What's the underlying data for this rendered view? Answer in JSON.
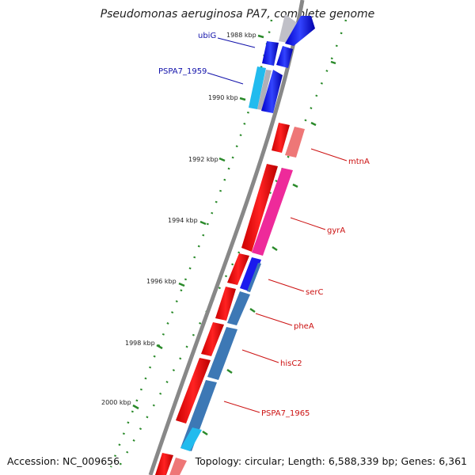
{
  "title": "Pseudomonas aeruginosa PA7, complete genome",
  "accession_text": "Accession: NC_009656",
  "topology_text": "Topology: circular; Length: 6,588,339 bp; Genes: 6,361",
  "kbp_ticks": [
    "1988 kbp",
    "1990 kbp",
    "1992 kbp",
    "1994 kbp",
    "1996 kbp",
    "1998 kbp",
    "2000 kbp"
  ],
  "genes": [
    "ubiG",
    "PSPA7_1959",
    "mtnA",
    "gyrA",
    "serC",
    "pheA",
    "hisC2",
    "PSPA7_1965"
  ],
  "colors": {
    "forward": "#1a1aee",
    "reverse": "#ee1111",
    "cds_blue": "#3d78b5",
    "cds_pink": "#ee2a9a",
    "cds_salmon": "#ee7777",
    "cds_cyan": "#22bbee",
    "backbone": "#888888",
    "tick": "#1a7a1a",
    "label_blue": "#1111aa",
    "label_red": "#cc1111"
  }
}
